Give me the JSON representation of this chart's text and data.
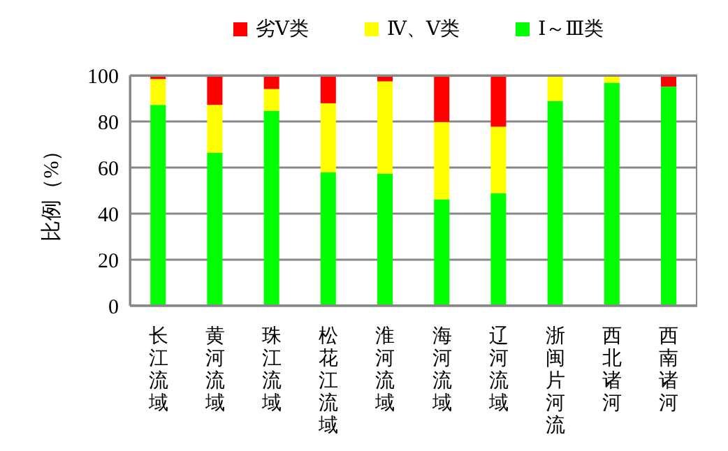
{
  "chart_data": {
    "type": "bar",
    "stacked": true,
    "ylabel": "比例（%）",
    "categories": [
      "长江流域",
      "黄河流域",
      "珠江流域",
      "松花江流域",
      "淮河流域",
      "海河流域",
      "辽河流域",
      "浙闽片河流",
      "西北诸河",
      "西南诸河"
    ],
    "series": [
      {
        "name": "Ⅰ～Ⅲ类",
        "color": "#00ff00",
        "values": [
          87.2,
          66.4,
          84.6,
          57.9,
          57.3,
          46.2,
          48.8,
          88.9,
          96.8,
          95.1
        ]
      },
      {
        "name": "Ⅳ、Ⅴ类",
        "color": "#ffff00",
        "values": [
          11.2,
          20.8,
          9.5,
          30,
          40.1,
          33.6,
          28.9,
          11.1,
          3.2,
          0
        ]
      },
      {
        "name": "劣Ⅴ类",
        "color": "#ff0000",
        "values": [
          1.6,
          12.8,
          5.9,
          12.1,
          2.6,
          20.2,
          22.3,
          0,
          0,
          4.9
        ]
      }
    ],
    "ylim": [
      0,
      100
    ],
    "yticks": [
      0,
      20,
      40,
      60,
      80,
      100
    ],
    "grid": "y",
    "legend": "top"
  }
}
